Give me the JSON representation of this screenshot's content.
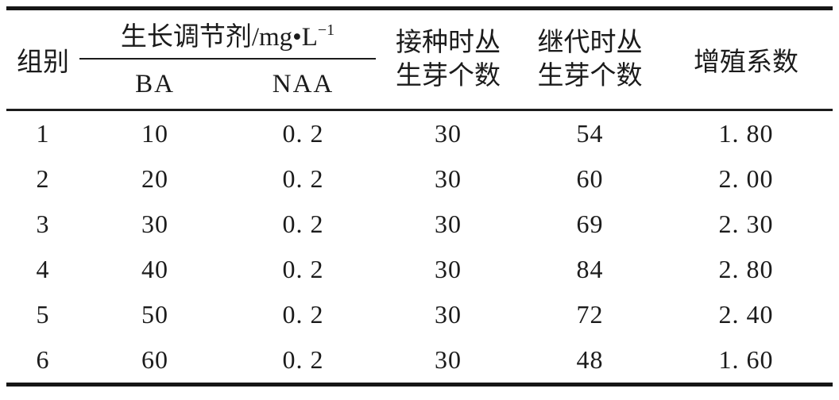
{
  "table": {
    "headers": {
      "group": "组别",
      "regulator": "生长调节剂/mg•L",
      "regulator_sup": "−1",
      "ba": "BA",
      "naa": "NAA",
      "inoculation_line1": "接种时丛",
      "inoculation_line2": "生芽个数",
      "subculture_line1": "继代时丛",
      "subculture_line2": "生芽个数",
      "coefficient": "增殖系数"
    },
    "rows": [
      [
        "1",
        "10",
        "0. 2",
        "30",
        "54",
        "1. 80"
      ],
      [
        "2",
        "20",
        "0. 2",
        "30",
        "60",
        "2. 00"
      ],
      [
        "3",
        "30",
        "0. 2",
        "30",
        "69",
        "2. 30"
      ],
      [
        "4",
        "40",
        "0. 2",
        "30",
        "84",
        "2. 80"
      ],
      [
        "5",
        "50",
        "0. 2",
        "30",
        "72",
        "2. 40"
      ],
      [
        "6",
        "60",
        "0. 2",
        "30",
        "48",
        "1. 60"
      ]
    ],
    "colors": {
      "text": "#1b1b1b",
      "thick_rule": "#161616",
      "thin_rule": "#1c1c1c",
      "background": "#ffffff"
    }
  },
  "chart_data": {
    "type": "table",
    "title": "",
    "columns": [
      "组别",
      "生长调节剂 BA/mg•L−1",
      "生长调节剂 NAA/mg•L−1",
      "接种时丛生芽个数",
      "继代时丛生芽个数",
      "增殖系数"
    ],
    "rows": [
      [
        1,
        10,
        0.2,
        30,
        54,
        1.8
      ],
      [
        2,
        20,
        0.2,
        30,
        60,
        2.0
      ],
      [
        3,
        30,
        0.2,
        30,
        69,
        2.3
      ],
      [
        4,
        40,
        0.2,
        30,
        84,
        2.8
      ],
      [
        5,
        50,
        0.2,
        30,
        72,
        2.4
      ],
      [
        6,
        60,
        0.2,
        30,
        48,
        1.6
      ]
    ]
  }
}
